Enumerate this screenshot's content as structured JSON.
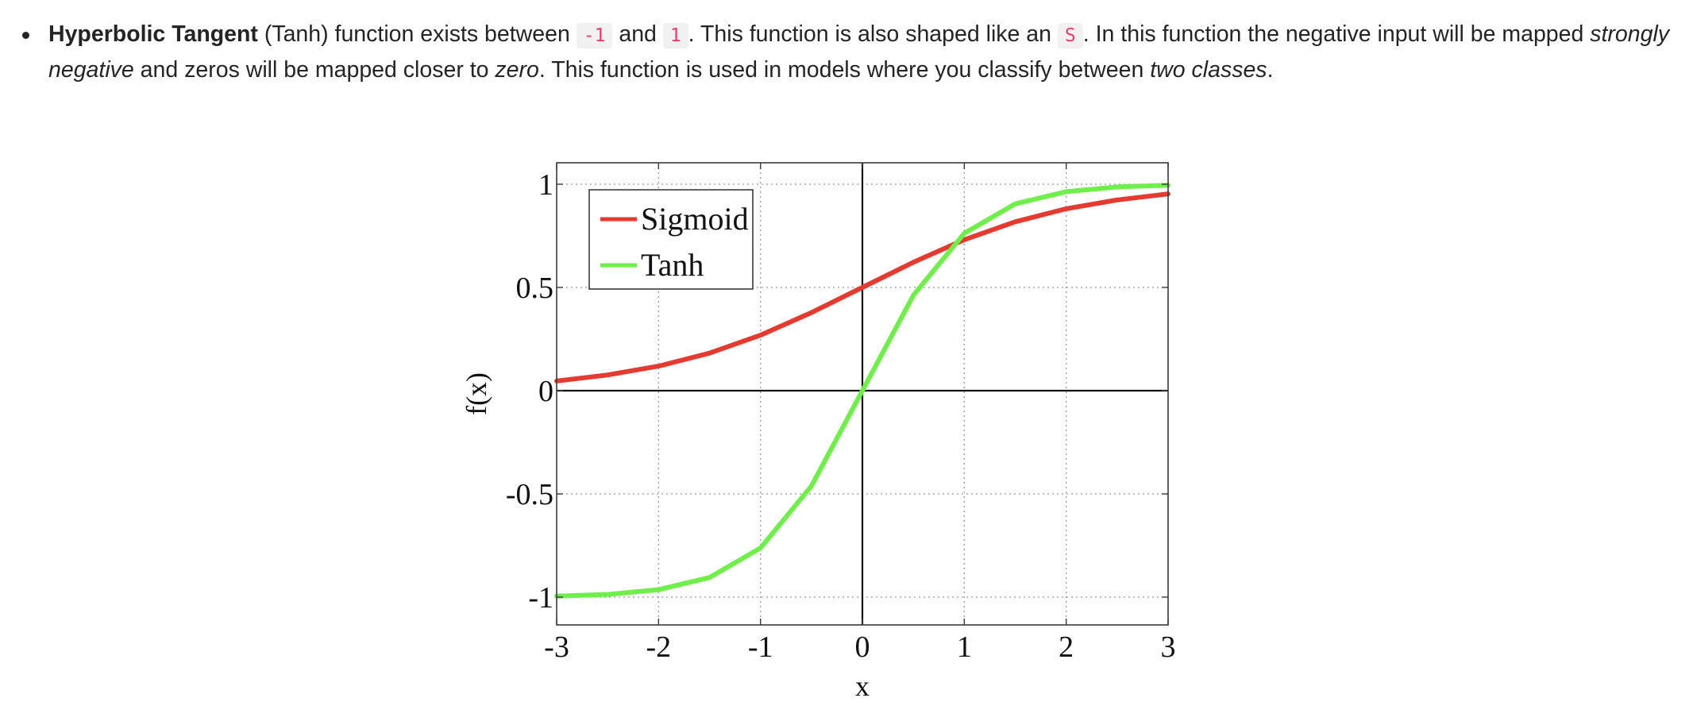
{
  "paragraph": {
    "term": "Hyperbolic Tangent",
    "t1": " (Tanh) function exists between ",
    "code_neg_one": "-1",
    "t2": " and ",
    "code_one": "1",
    "t3": ". This function is also shaped like an ",
    "code_s": "S",
    "t4": ". In this function the negative input will be mapped ",
    "em_strongly_negative": "strongly negative",
    "t5": " and zeros will be mapped closer to ",
    "em_zero": "zero",
    "t6": ". This function is used in models where you classify between ",
    "em_two_classes": "two classes",
    "t7": "."
  },
  "colors": {
    "text": "#242424",
    "code_text": "#e83e6c",
    "code_bg": "#f1f1f1",
    "sigmoid": "#e53a2f",
    "tanh": "#6fef4a"
  },
  "chart_data": {
    "type": "line",
    "xlabel": "x",
    "ylabel": "f(x)",
    "xlim": [
      -3,
      3
    ],
    "ylim": [
      -1.1,
      1.1
    ],
    "xticks": [
      "-3",
      "-2",
      "-1",
      "0",
      "1",
      "2",
      "3"
    ],
    "yticks": [
      "1",
      "0.5",
      "0",
      "-0.5",
      "-1"
    ],
    "grid": true,
    "legend": "top-left",
    "series": [
      {
        "name": "Sigmoid",
        "color": "#e53a2f",
        "x": [
          -3,
          -2.5,
          -2,
          -1.5,
          -1,
          -0.5,
          0,
          0.5,
          1,
          1.5,
          2,
          2.5,
          3
        ],
        "y": [
          0.047,
          0.076,
          0.119,
          0.182,
          0.269,
          0.378,
          0.5,
          0.622,
          0.731,
          0.818,
          0.881,
          0.924,
          0.953
        ]
      },
      {
        "name": "Tanh",
        "color": "#6fef4a",
        "x": [
          -3,
          -2.5,
          -2,
          -1.5,
          -1,
          -0.5,
          0,
          0.5,
          1,
          1.5,
          2,
          2.5,
          3
        ],
        "y": [
          -0.995,
          -0.987,
          -0.964,
          -0.905,
          -0.762,
          -0.462,
          0,
          0.462,
          0.762,
          0.905,
          0.964,
          0.987,
          0.995
        ]
      }
    ]
  }
}
